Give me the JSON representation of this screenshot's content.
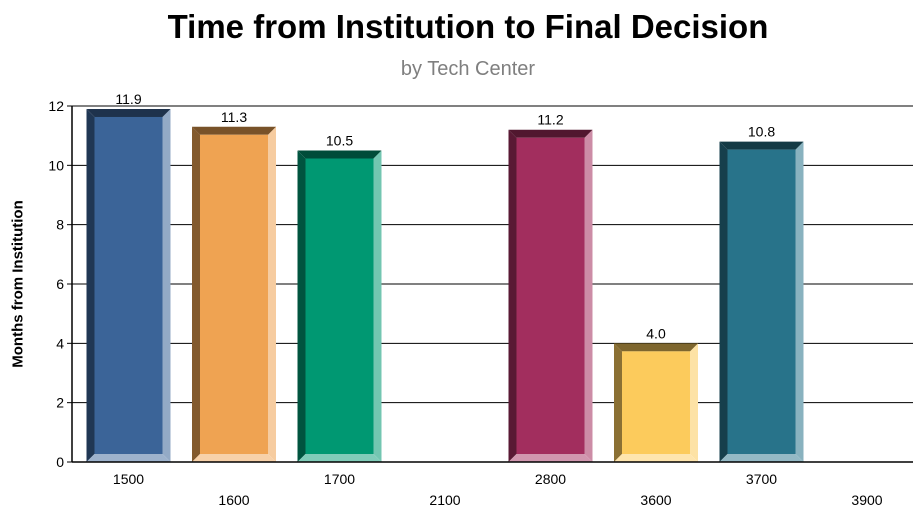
{
  "chart_data": {
    "type": "bar",
    "title": "Time from Institution to Final Decision",
    "subtitle": "by Tech Center",
    "xlabel": "",
    "ylabel": "Months from Institution",
    "categories": [
      "1500",
      "1600",
      "1700",
      "2100",
      "2800",
      "3600",
      "3700",
      "3900"
    ],
    "values": [
      11.9,
      11.3,
      10.5,
      null,
      11.2,
      4.0,
      10.8,
      null
    ],
    "value_labels": [
      "11.9",
      "11.3",
      "10.5",
      "",
      "11.2",
      "4.0",
      "10.8",
      ""
    ],
    "ylim": [
      0,
      12
    ],
    "yticks": [
      "0",
      "2",
      "4",
      "6",
      "8",
      "10",
      "12"
    ],
    "grid": true,
    "legend": "none",
    "colors": [
      "#3b6498",
      "#efa352",
      "#009872",
      "#888888",
      "#a22e5e",
      "#fccb5c",
      "#28738a",
      "#888888"
    ]
  }
}
